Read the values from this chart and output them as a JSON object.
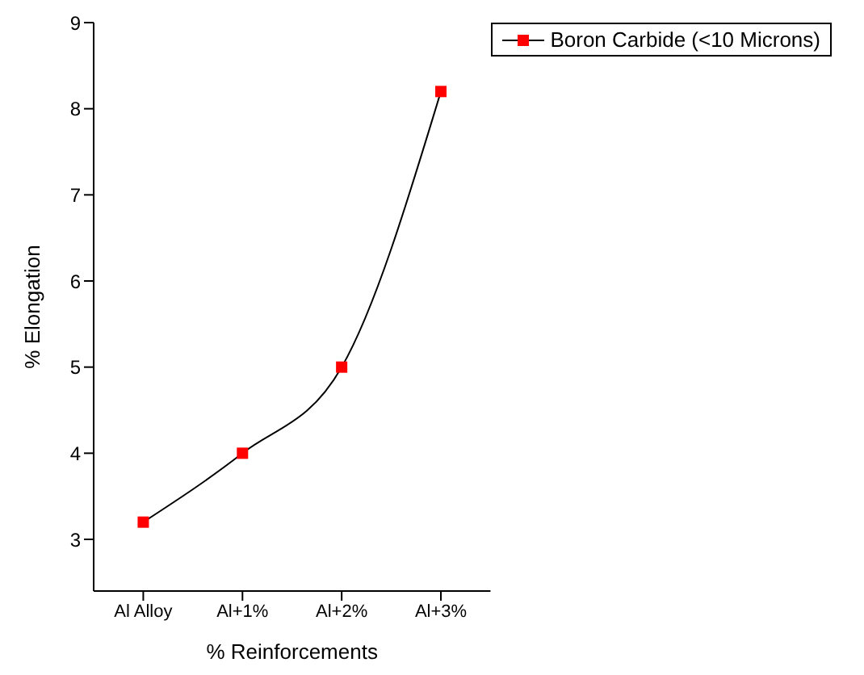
{
  "chart_data": {
    "type": "line",
    "xlabel": "% Reinforcements",
    "ylabel": "% Elongation",
    "categories": [
      "Al Alloy",
      "Al+1%",
      "Al+2%",
      "Al+3%"
    ],
    "series": [
      {
        "name": "Boron Carbide (<10 Microns)",
        "color": "#ff0000",
        "values": [
          3.2,
          4.0,
          5.0,
          8.2
        ]
      }
    ],
    "ylim": [
      2.4,
      9
    ],
    "yticks": [
      3,
      4,
      5,
      6,
      7,
      8,
      9
    ],
    "grid": false,
    "legend": "top right",
    "marker": "square",
    "line_style": "solid"
  }
}
